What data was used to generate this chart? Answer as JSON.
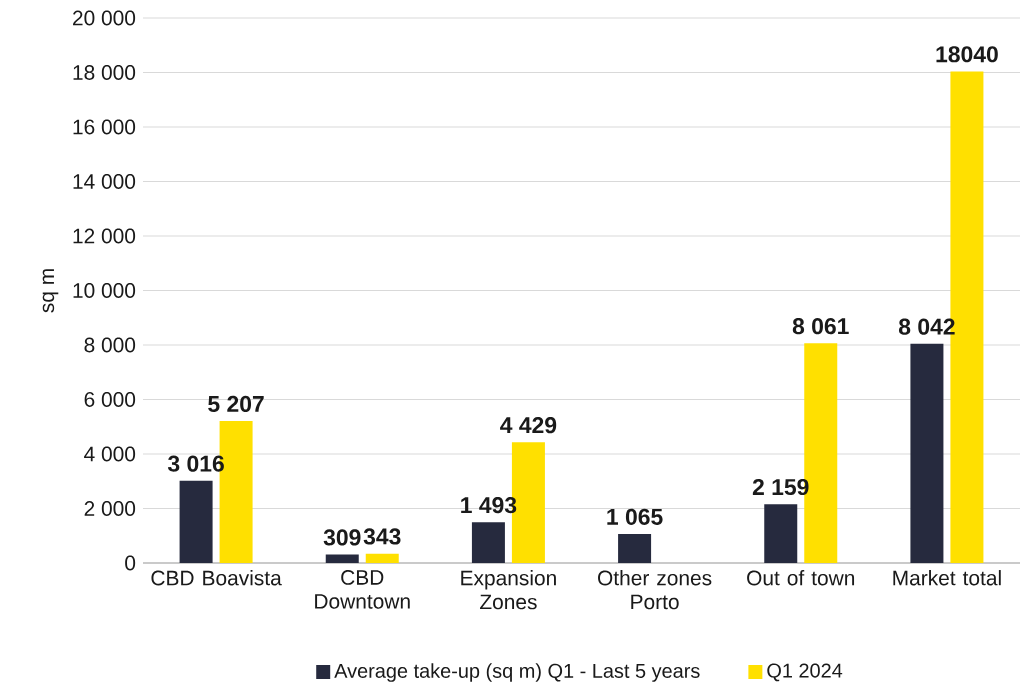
{
  "chart_data": {
    "type": "bar",
    "ylabel": "sq m",
    "categories": [
      "CBD Boavista",
      "CBD Downtown",
      "Expansion Zones",
      "Other zones Porto",
      "Out of town",
      "Market total"
    ],
    "series": [
      {
        "name": "Average take-up (sq m) Q1 - Last 5 years",
        "color": "#262a3e",
        "values": [
          3016,
          309,
          1493,
          1065,
          2159,
          8042
        ],
        "value_labels": [
          "3 016",
          "309",
          "1 493",
          "1 065",
          "2 159",
          "8 042"
        ]
      },
      {
        "name": "Q1 2024",
        "color": "#ffe000",
        "values": [
          5207,
          343,
          4429,
          null,
          8061,
          18040
        ],
        "value_labels": [
          "5 207",
          "343",
          "4 429",
          null,
          "8 061",
          "18040"
        ]
      }
    ],
    "ylim": [
      0,
      20000
    ],
    "yticks": [
      0,
      {
        "value": 2000,
        "label": "2 000"
      },
      {
        "value": 4000,
        "label": "4 000"
      },
      {
        "value": 6000,
        "label": "6 000"
      },
      {
        "value": 8000,
        "label": "8 000"
      },
      {
        "value": 10000,
        "label": "10 000"
      },
      {
        "value": 12000,
        "label": "12 000"
      },
      {
        "value": 14000,
        "label": "14 000"
      },
      {
        "value": 16000,
        "label": "16 000"
      },
      {
        "value": 18000,
        "label": "18 000"
      },
      {
        "value": 20000,
        "label": "20 000"
      }
    ],
    "grid": "y",
    "legend": "bottom"
  }
}
